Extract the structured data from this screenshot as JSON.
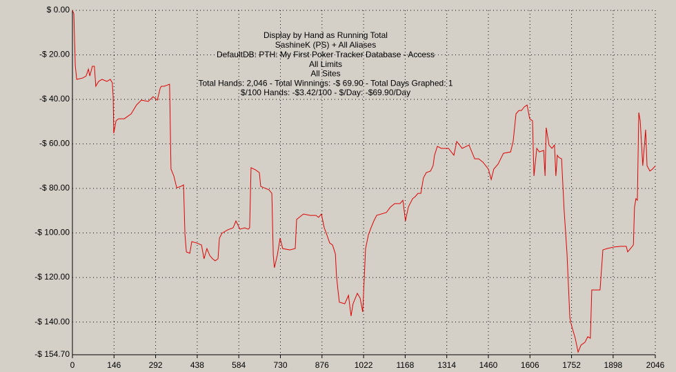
{
  "chart_data": {
    "type": "line",
    "title": "Display by Hand as Running Total",
    "annotations": [
      "SashineK (PS) + All Aliases",
      "DefaultDB: PTH: My First Poker Tracker Database - Access",
      "All Limits",
      "All Sites",
      "Total Hands: 2,046 - Total Winnings: -$ 69.90 - Total Days Graphed: 1",
      "$/100 Hands: -$3.42/100 - $/Day: -$69.90/Day"
    ],
    "color": "#e00000",
    "grid": true,
    "xlim": [
      0,
      2046
    ],
    "xticks": [
      0,
      146,
      292,
      438,
      584,
      730,
      876,
      1022,
      1168,
      1314,
      1460,
      1606,
      1752,
      1898,
      2046
    ],
    "ylim": [
      -154.7,
      0
    ],
    "yticks": [
      {
        "value": 0,
        "label": "$ 0.00"
      },
      {
        "value": -20,
        "label": "-$ 20.00"
      },
      {
        "value": -40,
        "label": "-$ 40.00"
      },
      {
        "value": -60,
        "label": "-$ 60.00"
      },
      {
        "value": -80,
        "label": "-$ 80.00"
      },
      {
        "value": -100,
        "label": "-$ 100.00"
      },
      {
        "value": -120,
        "label": "-$ 120.00"
      },
      {
        "value": -140,
        "label": "-$ 140.00"
      },
      {
        "value": -154.7,
        "label": "-$ 154.70"
      }
    ],
    "x": [
      0,
      5,
      10,
      15,
      36,
      48,
      56,
      61,
      70,
      77,
      82,
      92,
      104,
      121,
      133,
      140,
      143,
      145,
      153,
      162,
      182,
      206,
      225,
      242,
      266,
      283,
      298,
      308,
      312,
      322,
      341,
      346,
      356,
      366,
      380,
      390,
      395,
      400,
      412,
      419,
      436,
      453,
      462,
      472,
      482,
      492,
      501,
      511,
      516,
      525,
      545,
      564,
      574,
      588,
      605,
      617,
      622,
      627,
      642,
      656,
      661,
      690,
      700,
      705,
      709,
      719,
      729,
      738,
      763,
      782,
      787,
      811,
      835,
      855,
      864,
      874,
      884,
      893,
      903,
      913,
      923,
      927,
      932,
      937,
      956,
      969,
      978,
      985,
      1000,
      1010,
      1019,
      1029,
      1039,
      1048,
      1058,
      1068,
      1102,
      1116,
      1131,
      1150,
      1160,
      1169,
      1179,
      1194,
      1203,
      1213,
      1223,
      1232,
      1242,
      1257,
      1266,
      1271,
      1281,
      1295,
      1320,
      1339,
      1349,
      1368,
      1392,
      1412,
      1426,
      1441,
      1460,
      1470,
      1479,
      1494,
      1513,
      1538,
      1547,
      1557,
      1567,
      1576,
      1586,
      1596,
      1605,
      1615,
      1620,
      1630,
      1639,
      1654,
      1659,
      1663,
      1673,
      1683,
      1692,
      1697,
      1702,
      1707,
      1717,
      1726,
      1736,
      1746,
      1751,
      1765,
      1775,
      1785,
      1799,
      1809,
      1818,
      1823,
      1843,
      1852,
      1862,
      1877,
      1901,
      1925,
      1944,
      1949,
      1959,
      1969,
      1973,
      1978,
      1983,
      1988,
      1993,
      2002,
      2012,
      2017,
      2027,
      2036,
      2046
    ],
    "values": [
      0,
      -1.6,
      -24.8,
      -31.0,
      -30.4,
      -29.5,
      -26.4,
      -29.5,
      -25.1,
      -25.1,
      -34.1,
      -31.9,
      -31.0,
      -31.9,
      -31.0,
      -32.6,
      -38.8,
      -55.2,
      -49.6,
      -48.7,
      -48.7,
      -46.5,
      -42.5,
      -40.3,
      -40.9,
      -38.8,
      -40.3,
      -35.0,
      -34.1,
      -34.1,
      -33.2,
      -71.3,
      -74.4,
      -79.7,
      -79.1,
      -78.4,
      -100.8,
      -108.5,
      -109.1,
      -103.9,
      -104.5,
      -105.4,
      -111.6,
      -107.0,
      -110.1,
      -111.6,
      -112.5,
      -111.6,
      -102.3,
      -100.1,
      -98.6,
      -97.7,
      -94.6,
      -98.3,
      -97.7,
      -98.3,
      -97.7,
      -70.7,
      -71.6,
      -72.9,
      -79.1,
      -80.6,
      -82.2,
      -110.1,
      -115.6,
      -110.1,
      -102.3,
      -107.0,
      -107.6,
      -107.0,
      -93.9,
      -91.5,
      -92.1,
      -92.1,
      -93.0,
      -91.5,
      -97.7,
      -100.8,
      -104.5,
      -105.4,
      -109.4,
      -119.4,
      -125.6,
      -131.1,
      -131.8,
      -128.0,
      -137.3,
      -131.8,
      -127.1,
      -129.3,
      -135.5,
      -107.0,
      -100.8,
      -97.7,
      -94.6,
      -92.1,
      -90.8,
      -88.4,
      -86.8,
      -86.8,
      -85.3,
      -94.6,
      -88.4,
      -84.6,
      -83.7,
      -82.2,
      -82.2,
      -75.3,
      -72.9,
      -72.2,
      -69.8,
      -65.1,
      -61.1,
      -62.0,
      -62.0,
      -65.1,
      -58.9,
      -62.0,
      -60.5,
      -66.7,
      -66.7,
      -68.2,
      -71.3,
      -76.0,
      -71.3,
      -69.1,
      -64.2,
      -63.6,
      -58.9,
      -46.5,
      -45.0,
      -45.0,
      -43.4,
      -42.5,
      -48.7,
      -49.6,
      -74.4,
      -62.0,
      -63.6,
      -62.9,
      -74.4,
      -52.7,
      -60.5,
      -62.0,
      -60.5,
      -74.4,
      -65.1,
      -66.0,
      -66.7,
      -89.9,
      -109.1,
      -138.0,
      -141.1,
      -147.3,
      -153.5,
      -150.4,
      -149.1,
      -146.6,
      -147.3,
      -125.6,
      -125.6,
      -125.6,
      -107.6,
      -107.0,
      -106.3,
      -106.0,
      -106.0,
      -108.5,
      -107.0,
      -105.4,
      -88.4,
      -84.6,
      -85.3,
      -45.9,
      -49.6,
      -69.8,
      -53.6,
      -69.8,
      -72.2,
      -71.3,
      -69.9
    ]
  }
}
